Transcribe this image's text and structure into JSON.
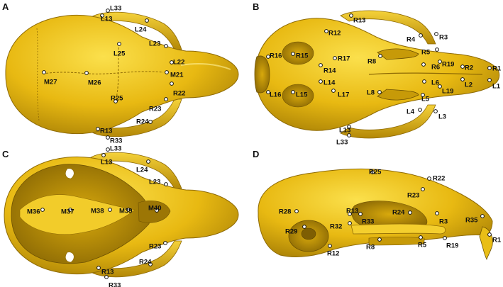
{
  "colors": {
    "bone": "#E3B40F",
    "bone_light": "#F6D43A",
    "bone_dark": "#9C7605",
    "shadow": "#6E5203",
    "background": "#FFFFFF",
    "landmark_fill": "#FFFFFF",
    "landmark_stroke": "#111111"
  },
  "panels": [
    {
      "letter": "A",
      "view": "dorsal",
      "landmarks": [
        "L33",
        "L13",
        "L24",
        "L25",
        "L23",
        "L22",
        "M27",
        "M26",
        "M21",
        "R25",
        "R22",
        "R23",
        "R24",
        "R13",
        "R33"
      ]
    },
    {
      "letter": "B",
      "view": "ventral",
      "landmarks": [
        "R13",
        "R12",
        "R4",
        "R3",
        "R16",
        "R15",
        "R17",
        "R8",
        "R5",
        "R19",
        "R6",
        "R2",
        "R1",
        "R14",
        "L14",
        "L16",
        "L15",
        "L17",
        "L8",
        "L6",
        "L2",
        "L19",
        "L5",
        "L1",
        "L4",
        "L3",
        "L13",
        "L33"
      ]
    },
    {
      "letter": "C",
      "view": "interior",
      "landmarks": [
        "L33",
        "L13",
        "L24",
        "L23",
        "M36",
        "M37",
        "M38",
        "M39",
        "M40",
        "R23",
        "R13",
        "R24",
        "R33"
      ]
    },
    {
      "letter": "D",
      "view": "lateral",
      "landmarks": [
        "R25",
        "R22",
        "R23",
        "R28",
        "R13",
        "R24",
        "R33",
        "R32",
        "R3",
        "R35",
        "R29",
        "R12",
        "R8",
        "R5",
        "R19",
        "R1"
      ]
    }
  ]
}
